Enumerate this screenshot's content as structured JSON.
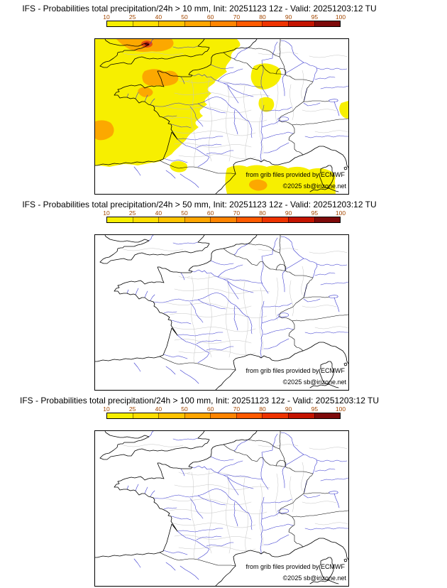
{
  "panels": [
    {
      "title": "IFS - Probabilities total precipitation/24h > 10 mm, Init: 20251123 12z - Valid: 20251203:12 TU",
      "threshold_mm": "10",
      "has_shading": true
    },
    {
      "title": "IFS - Probabilities total precipitation/24h > 50 mm, Init: 20251123 12z - Valid: 20251203:12 TU",
      "threshold_mm": "50",
      "has_shading": false
    },
    {
      "title": "IFS - Probabilities total precipitation/24h > 100 mm, Init: 20251123 12z - Valid: 20251203:12 TU",
      "threshold_mm": "100",
      "has_shading": false
    }
  ],
  "colorbar": {
    "ticks": [
      "10",
      "25",
      "40",
      "50",
      "60",
      "70",
      "80",
      "90",
      "95",
      "100"
    ],
    "colors": [
      "#F7EF00",
      "#FFDE00",
      "#FFC300",
      "#FFA500",
      "#FF8400",
      "#FF5A00",
      "#EE3300",
      "#C41400",
      "#7E0A0A"
    ],
    "tick_color": "#a34700",
    "border_color": "#000000"
  },
  "credits": {
    "line1": "from grib files provided by ECMWF",
    "line2": "©2025 sb@irizone.net"
  },
  "map": {
    "region": "France and surroundings",
    "coast_color": "#000000",
    "river_color": "#3b3bd0",
    "department_line_color": "#c5c5c5",
    "shading_yellow": "#F7EF00",
    "shading_orange": "#FCA800",
    "shading_red": "#E85010",
    "shading_dark_red": "#8F0A0A"
  }
}
